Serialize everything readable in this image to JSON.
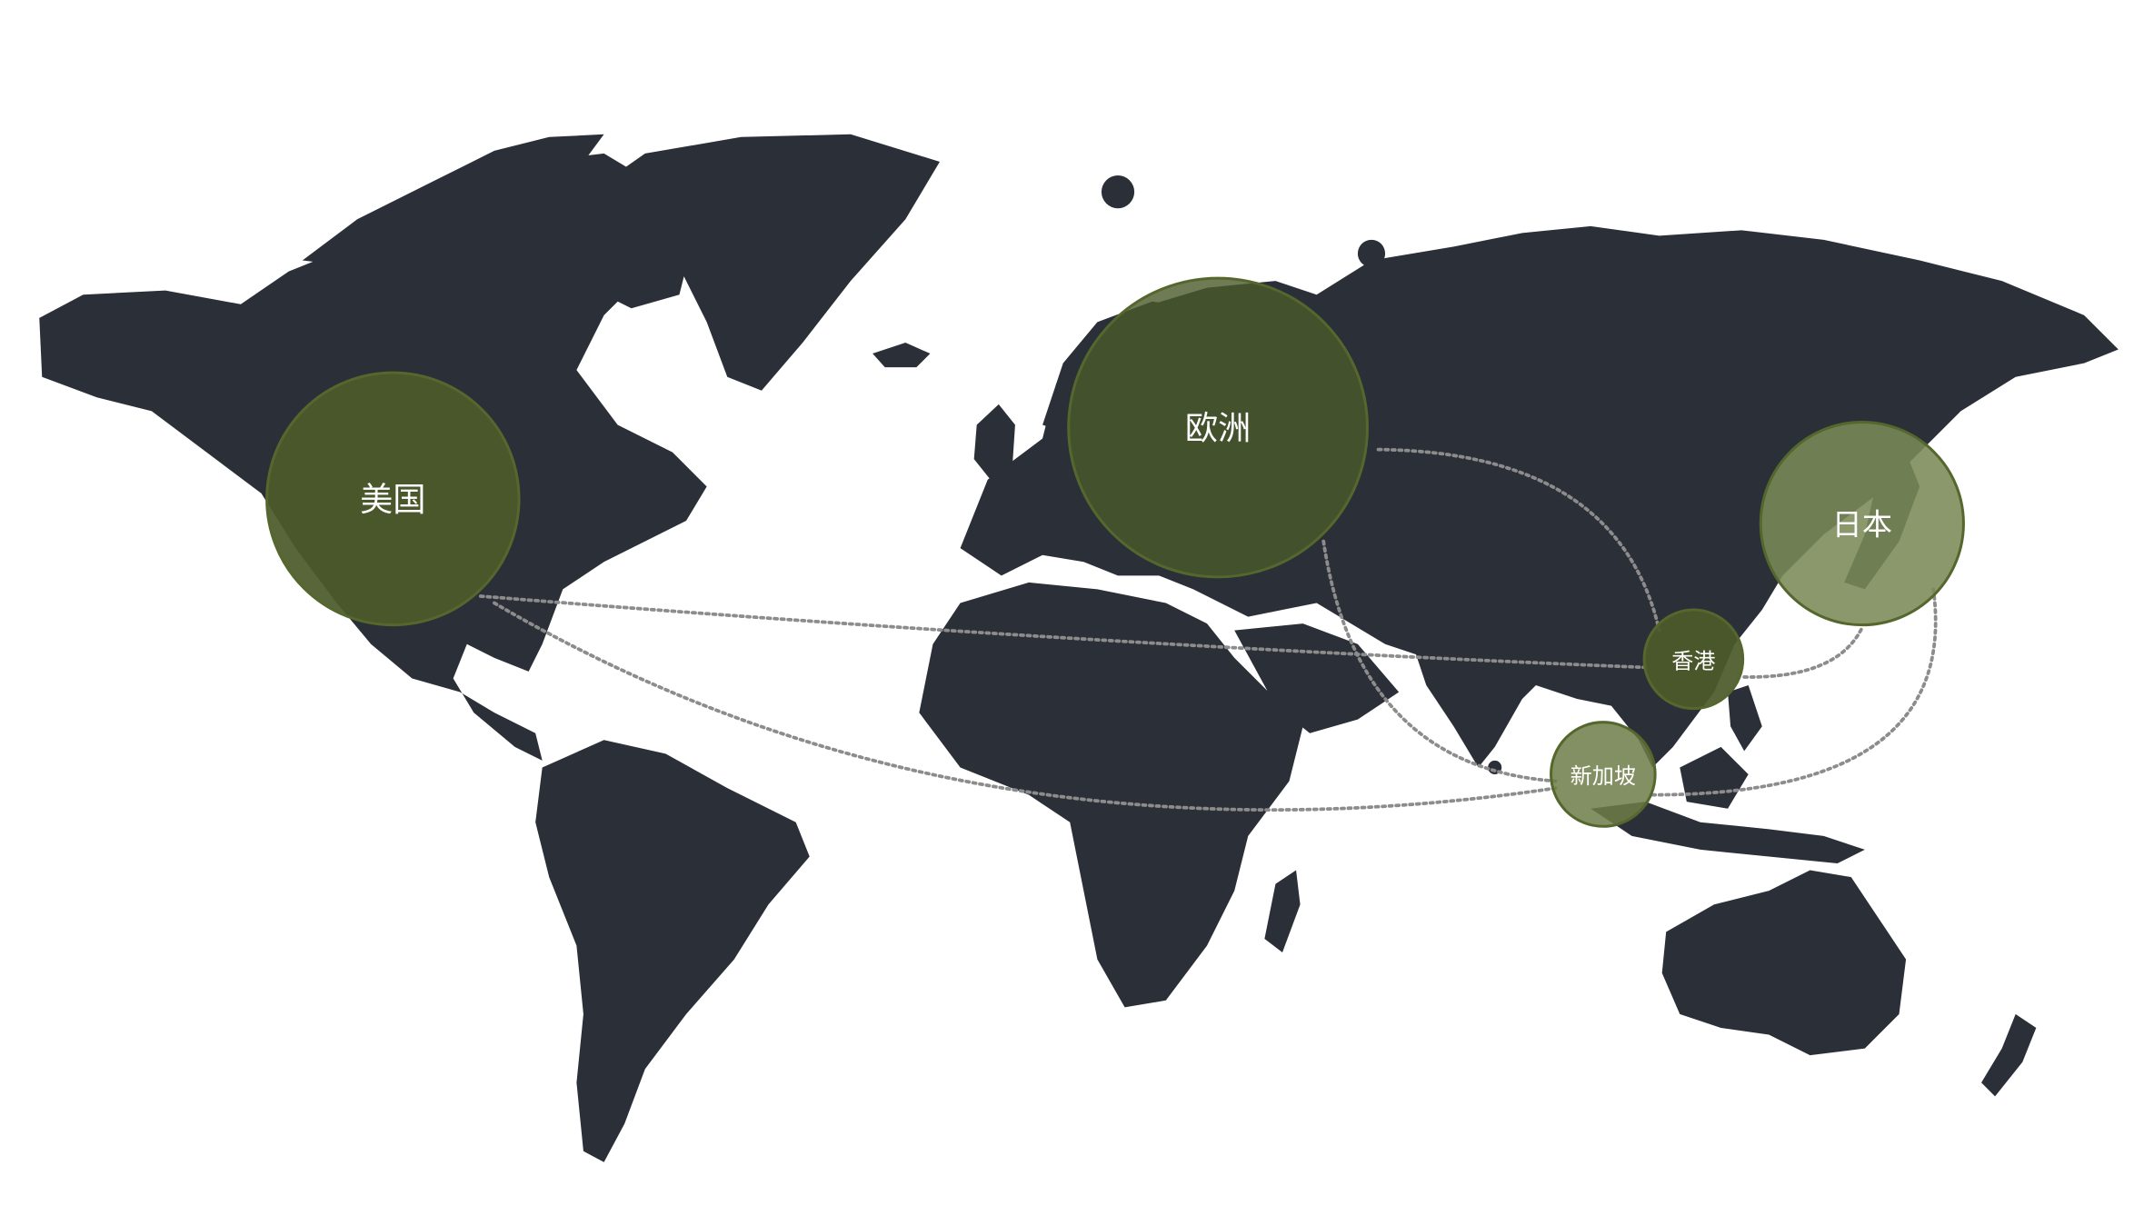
{
  "map": {
    "land_color": "#2b2f38",
    "background_color": "#ffffff",
    "route_color": "#8c8c8c",
    "markers": [
      {
        "id": "usa",
        "label": "美国",
        "fill": "#4b5a2a",
        "opacity": 0.93,
        "stroke": "#55672d"
      },
      {
        "id": "europe",
        "label": "欧洲",
        "fill": "#4b5a2a",
        "opacity": 0.8,
        "stroke": "#55672d"
      },
      {
        "id": "japan",
        "label": "日本",
        "fill": "#7a8a56",
        "opacity": 0.88,
        "stroke": "#55672d"
      },
      {
        "id": "hongkong",
        "label": "香港",
        "fill": "#4b5a2a",
        "opacity": 0.93,
        "stroke": "#55672d"
      },
      {
        "id": "singapore",
        "label": "新加坡",
        "fill": "#6d7d48",
        "opacity": 0.85,
        "stroke": "#55672d"
      }
    ],
    "routes": [
      {
        "from": "usa",
        "to": "hongkong"
      },
      {
        "from": "usa",
        "to": "singapore"
      },
      {
        "from": "europe",
        "to": "hongkong"
      },
      {
        "from": "europe",
        "to": "singapore"
      },
      {
        "from": "hongkong",
        "to": "japan"
      },
      {
        "from": "singapore",
        "to": "japan"
      }
    ]
  }
}
